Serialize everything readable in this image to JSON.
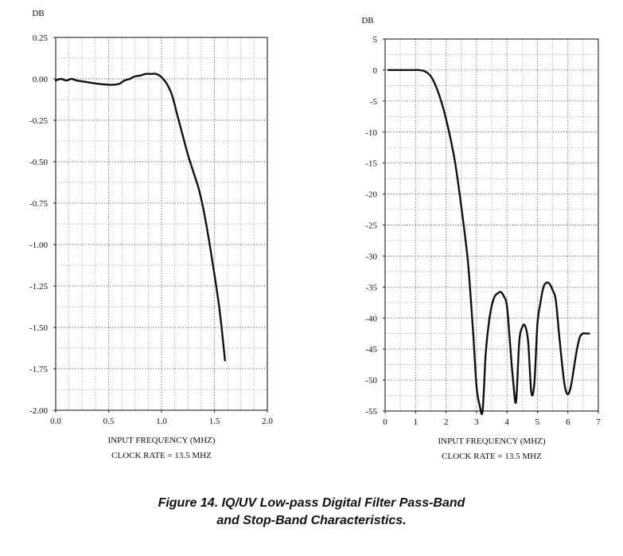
{
  "figure_caption": {
    "line1": "Figure 14. IQ/UV Low-pass Digital Filter Pass-Band",
    "line2": "and Stop-Band Characteristics."
  },
  "chart_data": [
    {
      "type": "line",
      "ylabel": "DB",
      "xlabel": "INPUT FREQUENCY (MHZ)",
      "subtitle": "CLOCK RATE = 13.5 MHZ",
      "xlim": [
        0.0,
        2.0
      ],
      "ylim": [
        -2.0,
        0.25
      ],
      "xticks": [
        "0.0",
        "0.5",
        "1.0",
        "1.5",
        "2.0"
      ],
      "yticks": [
        "0.25",
        "0.00",
        "-0.25",
        "-0.50",
        "-0.75",
        "-1.00",
        "-1.25",
        "-1.50",
        "-1.75",
        "-2.00"
      ],
      "grid": true,
      "series": [
        {
          "x": [
            0.0,
            0.05,
            0.1,
            0.15,
            0.2,
            0.3,
            0.4,
            0.5,
            0.55,
            0.6,
            0.65,
            0.7,
            0.75,
            0.8,
            0.85,
            0.9,
            0.95,
            1.0,
            1.05,
            1.1,
            1.15,
            1.2,
            1.25,
            1.3,
            1.35,
            1.4,
            1.45,
            1.5,
            1.55,
            1.6
          ],
          "y": [
            -0.01,
            0.0,
            -0.01,
            0.0,
            -0.01,
            -0.02,
            -0.03,
            -0.035,
            -0.035,
            -0.03,
            -0.01,
            0.0,
            0.015,
            0.02,
            0.03,
            0.03,
            0.03,
            0.01,
            -0.03,
            -0.1,
            -0.22,
            -0.34,
            -0.46,
            -0.56,
            -0.66,
            -0.8,
            -0.98,
            -1.18,
            -1.4,
            -1.7
          ]
        }
      ]
    },
    {
      "type": "line",
      "ylabel": "DB",
      "xlabel": "INPUT FREQUENCY (MHZ)",
      "subtitle": "CLOCK RATE = 13.5 MHZ",
      "xlim": [
        0,
        7
      ],
      "ylim": [
        -55,
        5
      ],
      "xticks": [
        "0",
        "1",
        "2",
        "3",
        "4",
        "5",
        "6",
        "7"
      ],
      "yticks": [
        "5",
        "0",
        "-5",
        "-10",
        "-15",
        "-20",
        "-25",
        "-30",
        "-35",
        "-40",
        "-45",
        "-50",
        "-55"
      ],
      "grid": true,
      "series": [
        {
          "x": [
            0.1,
            0.5,
            0.9,
            1.1,
            1.3,
            1.5,
            1.7,
            1.9,
            2.1,
            2.3,
            2.5,
            2.7,
            2.8,
            2.9,
            3.0,
            3.1,
            3.2,
            3.3,
            3.4,
            3.5,
            3.6,
            3.7,
            3.8,
            3.9,
            4.0,
            4.1,
            4.2,
            4.3,
            4.4,
            4.5,
            4.6,
            4.7,
            4.8,
            4.9,
            5.0,
            5.1,
            5.2,
            5.3,
            5.4,
            5.5,
            5.6,
            5.7,
            5.8,
            5.9,
            6.0,
            6.1,
            6.2,
            6.3,
            6.4,
            6.5,
            6.6,
            6.7
          ],
          "y": [
            0,
            0,
            0,
            0,
            -0.2,
            -1,
            -3,
            -6,
            -10,
            -15,
            -22,
            -30,
            -36,
            -43,
            -51,
            -54,
            -55,
            -46,
            -41,
            -38,
            -36.5,
            -36,
            -35.8,
            -36.5,
            -38,
            -44,
            -50,
            -53.5,
            -44,
            -41.5,
            -41.3,
            -44,
            -52,
            -50.5,
            -41,
            -37.5,
            -35,
            -34.3,
            -34.5,
            -35.5,
            -37,
            -42,
            -47,
            -51,
            -52.3,
            -51,
            -48,
            -45,
            -43,
            -42.5,
            -42.5,
            -42.5
          ]
        }
      ]
    }
  ]
}
